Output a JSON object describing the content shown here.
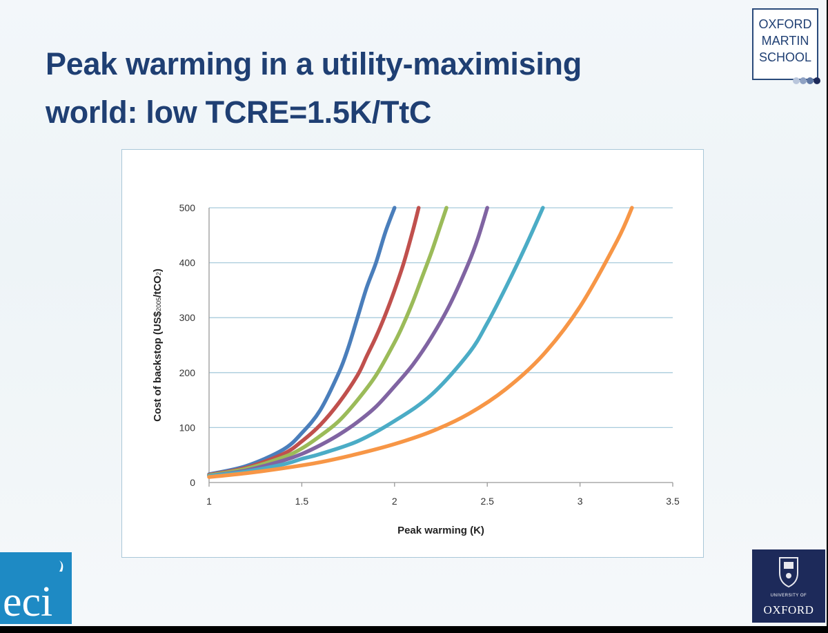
{
  "slide": {
    "title_line1": "Peak warming in a utility-maximising",
    "title_line2": "world: low TCRE=1.5K/TtC",
    "logo_top_right": {
      "line1": "OXFORD",
      "line2": "MARTIN",
      "line3": "SCHOOL"
    },
    "logo_bottom_left": {
      "text": "eci",
      "color": "#1e8ac4"
    },
    "logo_bottom_right": {
      "line1": "UNIVERSITY OF",
      "line2": "OXFORD",
      "color": "#1d2a5a"
    },
    "title_color": "#1f3f73"
  },
  "chart_data": {
    "type": "line",
    "title": "",
    "xlabel": "Peak warming (K)",
    "ylabel": "Cost of backstop (US$",
    "ylabel_sub": "2005",
    "ylabel_end": "/tCO",
    "ylabel_sub2": "2",
    "ylabel_close": ")",
    "xlim": [
      1,
      3.5
    ],
    "ylim": [
      0,
      500
    ],
    "x_ticks": [
      "1",
      "1.5",
      "2",
      "2.5",
      "3",
      "3.5"
    ],
    "y_ticks": [
      "0",
      "100",
      "200",
      "300",
      "400",
      "500"
    ],
    "grid": "horizontal",
    "legend": "none",
    "series": [
      {
        "color": "#4a7ebb",
        "x": [
          1.0,
          1.2,
          1.4,
          1.5,
          1.6,
          1.7,
          1.75,
          1.8,
          1.85,
          1.9,
          1.95,
          2.0
        ],
        "y": [
          15,
          30,
          60,
          90,
          132,
          200,
          245,
          300,
          355,
          400,
          455,
          500
        ]
      },
      {
        "color": "#c0504d",
        "x": [
          1.0,
          1.2,
          1.4,
          1.5,
          1.6,
          1.7,
          1.8,
          1.85,
          1.9,
          1.95,
          2.0,
          2.05,
          2.1,
          2.13
        ],
        "y": [
          14,
          27,
          52,
          75,
          105,
          145,
          195,
          230,
          265,
          305,
          350,
          400,
          460,
          500
        ]
      },
      {
        "color": "#9bbb59",
        "x": [
          1.0,
          1.2,
          1.4,
          1.5,
          1.6,
          1.7,
          1.8,
          1.9,
          2.0,
          2.05,
          2.1,
          2.15,
          2.2,
          2.25,
          2.28
        ],
        "y": [
          13,
          25,
          46,
          62,
          85,
          112,
          150,
          195,
          255,
          290,
          330,
          375,
          420,
          470,
          500
        ]
      },
      {
        "color": "#8064a2",
        "x": [
          1.0,
          1.2,
          1.4,
          1.5,
          1.6,
          1.7,
          1.8,
          1.9,
          2.0,
          2.1,
          2.2,
          2.3,
          2.4,
          2.45,
          2.5
        ],
        "y": [
          12,
          22,
          40,
          52,
          68,
          87,
          110,
          138,
          175,
          215,
          265,
          325,
          400,
          445,
          500
        ]
      },
      {
        "color": "#4bacc6",
        "x": [
          1.0,
          1.2,
          1.4,
          1.5,
          1.6,
          1.8,
          2.0,
          2.2,
          2.4,
          2.5,
          2.6,
          2.7,
          2.8
        ],
        "y": [
          12,
          20,
          33,
          43,
          52,
          75,
          112,
          160,
          235,
          290,
          355,
          425,
          500
        ]
      },
      {
        "color": "#f79646",
        "x": [
          1.0,
          1.2,
          1.4,
          1.6,
          1.8,
          2.0,
          2.2,
          2.4,
          2.6,
          2.8,
          3.0,
          3.2,
          3.28
        ],
        "y": [
          10,
          17,
          26,
          37,
          52,
          70,
          93,
          125,
          170,
          232,
          320,
          440,
          500
        ]
      }
    ]
  }
}
